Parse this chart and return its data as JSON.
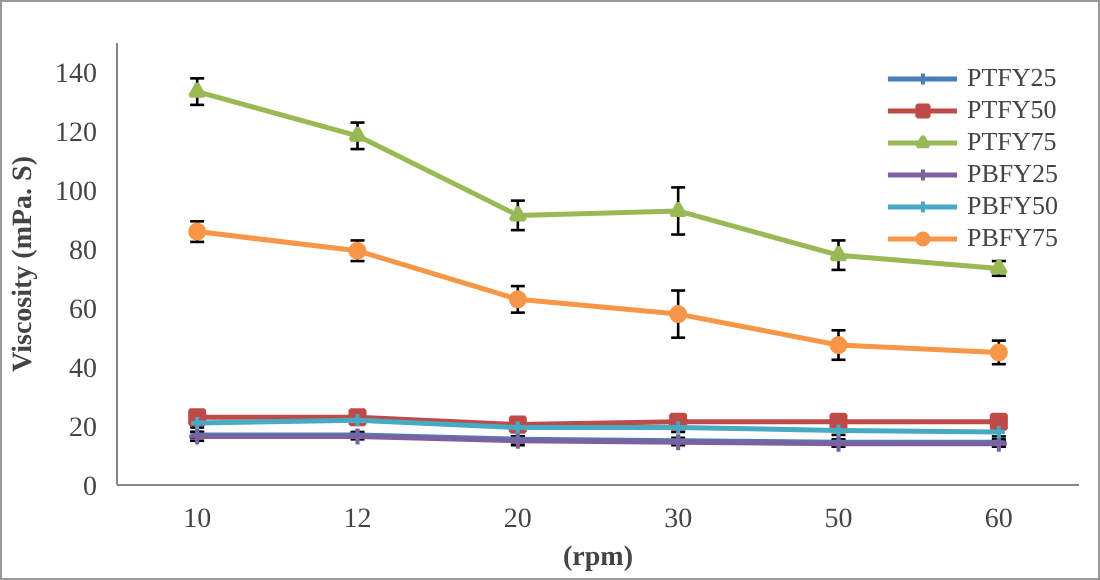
{
  "chart_data": {
    "type": "line",
    "xlabel": "(rpm)",
    "ylabel": "Viscosity (mPa. S)",
    "categories": [
      "10",
      "12",
      "20",
      "30",
      "50",
      "60"
    ],
    "ylim": [
      0,
      150
    ],
    "yticks": [
      0,
      20,
      40,
      60,
      80,
      100,
      120,
      140
    ],
    "grid": false,
    "legend": "top right",
    "series": [
      {
        "name": "PTFY25",
        "color": "#4a7ebb",
        "marker": "cross",
        "values": [
          17,
          17,
          15.5,
          15,
          14.5,
          14.5
        ],
        "errors": [
          1,
          1,
          1,
          1,
          1,
          1
        ]
      },
      {
        "name": "PTFY50",
        "color": "#be4b48",
        "marker": "square",
        "values": [
          23,
          23,
          20.5,
          21.5,
          21.5,
          21.5
        ],
        "errors": [
          1.5,
          1.5,
          1.5,
          1.5,
          1,
          1.5
        ]
      },
      {
        "name": "PTFY75",
        "color": "#98b954",
        "marker": "triangle",
        "values": [
          133.5,
          118.5,
          91.5,
          93,
          78,
          73.5
        ],
        "errors": [
          4.5,
          4.5,
          5,
          8,
          5,
          2.5
        ]
      },
      {
        "name": "PBFY25",
        "color": "#7d60a0",
        "marker": "cross",
        "values": [
          16.5,
          16.5,
          15,
          14.5,
          14,
          14
        ],
        "errors": [
          1.5,
          1,
          1.5,
          1,
          1,
          1
        ]
      },
      {
        "name": "PBFY50",
        "color": "#46aac5",
        "marker": "cross",
        "values": [
          21,
          22,
          19.5,
          19.5,
          18.5,
          18
        ],
        "errors": [
          1.5,
          1.5,
          1.5,
          1.5,
          1.5,
          1.5
        ]
      },
      {
        "name": "PBFY75",
        "color": "#f79646",
        "marker": "circle",
        "values": [
          86,
          79.5,
          63,
          58,
          47.5,
          45
        ],
        "errors": [
          3.5,
          3.5,
          4.5,
          8,
          5,
          4
        ]
      }
    ]
  }
}
